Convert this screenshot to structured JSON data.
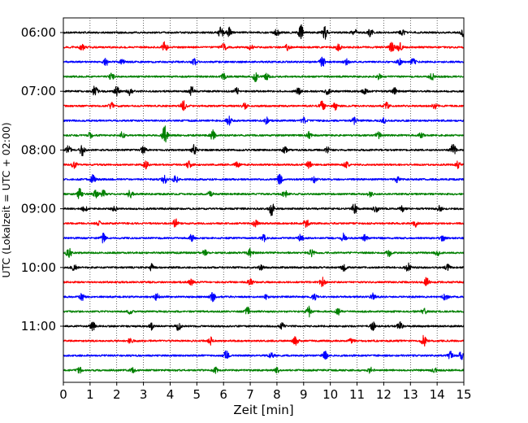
{
  "chart_data": {
    "type": "line",
    "title": "",
    "xlabel": "Zeit  [min]",
    "ylabel": "UTC (Lokalzeit = UTC + 02:00)",
    "xlim": [
      0,
      15
    ],
    "x_ticks": [
      "0",
      "1",
      "2",
      "3",
      "4",
      "5",
      "6",
      "7",
      "8",
      "9",
      "10",
      "11",
      "12",
      "13",
      "14",
      "15"
    ],
    "y_tick_labels": [
      "06:00",
      "07:00",
      "08:00",
      "09:00",
      "10:00",
      "11:00"
    ],
    "trace_interval_minutes": 15,
    "start_time": "06:00",
    "trace_count": 24,
    "color_cycle": [
      "#000000",
      "#ff0000",
      "#0000ff",
      "#008000"
    ],
    "grid": "vertical dotted at each minute",
    "series": [
      {
        "start": "06:00",
        "events": [
          [
            5.9,
            1.0
          ],
          [
            6.2,
            0.9
          ],
          [
            8.0,
            0.6
          ],
          [
            8.9,
            1.4
          ],
          [
            9.8,
            1.2
          ],
          [
            10.9,
            0.6
          ],
          [
            11.5,
            0.7
          ],
          [
            12.7,
            0.6
          ],
          [
            15.0,
            1.1
          ]
        ]
      },
      {
        "start": "06:15",
        "events": [
          [
            0.7,
            0.6
          ],
          [
            3.8,
            1.0
          ],
          [
            6.0,
            0.8
          ],
          [
            7.0,
            0.5
          ],
          [
            8.4,
            0.5
          ],
          [
            10.3,
            0.6
          ],
          [
            12.3,
            0.9
          ],
          [
            12.6,
            0.9
          ]
        ]
      },
      {
        "start": "06:30",
        "events": [
          [
            1.6,
            0.6
          ],
          [
            2.2,
            0.4
          ],
          [
            4.9,
            0.6
          ],
          [
            9.7,
            0.9
          ],
          [
            10.6,
            0.5
          ],
          [
            12.6,
            0.5
          ],
          [
            13.1,
            0.6
          ]
        ]
      },
      {
        "start": "06:45",
        "events": [
          [
            1.8,
            0.6
          ],
          [
            6.0,
            0.5
          ],
          [
            7.2,
            1.0
          ],
          [
            7.6,
            0.6
          ],
          [
            11.8,
            0.5
          ],
          [
            13.8,
            0.6
          ]
        ]
      },
      {
        "start": "07:00",
        "events": [
          [
            1.2,
            1.2
          ],
          [
            2.0,
            0.9
          ],
          [
            2.5,
            0.8
          ],
          [
            4.8,
            0.9
          ],
          [
            6.5,
            0.7
          ],
          [
            8.8,
            0.6
          ],
          [
            9.9,
            0.6
          ],
          [
            11.3,
            0.5
          ],
          [
            12.4,
            0.6
          ]
        ]
      },
      {
        "start": "07:15",
        "events": [
          [
            1.8,
            0.6
          ],
          [
            4.5,
            1.0
          ],
          [
            6.8,
            0.5
          ],
          [
            9.7,
            1.0
          ],
          [
            10.2,
            0.7
          ],
          [
            12.1,
            0.6
          ],
          [
            13.9,
            0.5
          ]
        ]
      },
      {
        "start": "07:30",
        "events": [
          [
            6.2,
            0.9
          ],
          [
            7.6,
            0.6
          ],
          [
            9.0,
            0.5
          ],
          [
            10.9,
            0.6
          ],
          [
            12.0,
            0.5
          ]
        ]
      },
      {
        "start": "07:45",
        "events": [
          [
            1.0,
            0.5
          ],
          [
            2.2,
            0.8
          ],
          [
            3.8,
            1.8
          ],
          [
            5.6,
            0.9
          ],
          [
            9.2,
            0.7
          ],
          [
            11.8,
            0.6
          ],
          [
            13.4,
            0.5
          ]
        ]
      },
      {
        "start": "08:00",
        "events": [
          [
            0.2,
            0.9
          ],
          [
            0.7,
            1.3
          ],
          [
            3.0,
            0.7
          ],
          [
            4.9,
            1.0
          ],
          [
            8.3,
            0.5
          ],
          [
            9.9,
            0.6
          ],
          [
            14.6,
            1.1
          ]
        ]
      },
      {
        "start": "08:15",
        "events": [
          [
            0.4,
            0.7
          ],
          [
            3.1,
            0.9
          ],
          [
            4.7,
            0.6
          ],
          [
            6.5,
            0.5
          ],
          [
            9.2,
            0.6
          ],
          [
            10.6,
            0.5
          ],
          [
            14.8,
            0.7
          ]
        ]
      },
      {
        "start": "08:30",
        "events": [
          [
            1.1,
            0.8
          ],
          [
            3.8,
            0.8
          ],
          [
            4.2,
            0.6
          ],
          [
            8.1,
            0.9
          ],
          [
            9.4,
            0.6
          ],
          [
            12.5,
            0.5
          ]
        ]
      },
      {
        "start": "08:45",
        "events": [
          [
            0.6,
            1.0
          ],
          [
            1.2,
            0.7
          ],
          [
            1.5,
            0.7
          ],
          [
            2.5,
            0.9
          ],
          [
            5.5,
            0.5
          ],
          [
            8.3,
            0.8
          ],
          [
            11.5,
            0.7
          ]
        ]
      },
      {
        "start": "09:00",
        "events": [
          [
            0.8,
            0.6
          ],
          [
            1.9,
            0.5
          ],
          [
            7.8,
            1.3
          ],
          [
            10.9,
            0.9
          ],
          [
            11.7,
            0.6
          ],
          [
            12.7,
            0.5
          ],
          [
            14.1,
            0.5
          ]
        ]
      },
      {
        "start": "09:15",
        "events": [
          [
            1.3,
            0.5
          ],
          [
            4.2,
            0.8
          ],
          [
            7.2,
            0.6
          ],
          [
            9.1,
            0.8
          ],
          [
            13.2,
            0.6
          ]
        ]
      },
      {
        "start": "09:30",
        "events": [
          [
            1.5,
            1.1
          ],
          [
            4.8,
            0.6
          ],
          [
            7.5,
            0.6
          ],
          [
            8.9,
            0.7
          ],
          [
            10.5,
            0.8
          ],
          [
            11.3,
            0.6
          ],
          [
            14.2,
            0.5
          ]
        ]
      },
      {
        "start": "09:45",
        "events": [
          [
            0.2,
            1.2
          ],
          [
            5.3,
            0.5
          ],
          [
            7.0,
            0.7
          ],
          [
            9.3,
            0.6
          ],
          [
            12.2,
            0.7
          ],
          [
            14.0,
            0.5
          ]
        ]
      },
      {
        "start": "10:00",
        "events": [
          [
            0.4,
            0.5
          ],
          [
            3.3,
            0.6
          ],
          [
            7.4,
            0.5
          ],
          [
            10.5,
            0.6
          ],
          [
            12.9,
            0.8
          ],
          [
            14.4,
            0.5
          ]
        ]
      },
      {
        "start": "10:15",
        "events": [
          [
            4.8,
            0.6
          ],
          [
            7.0,
            0.6
          ],
          [
            9.7,
            0.9
          ],
          [
            13.6,
            0.8
          ]
        ]
      },
      {
        "start": "10:30",
        "events": [
          [
            0.7,
            0.6
          ],
          [
            3.5,
            0.6
          ],
          [
            5.6,
            0.8
          ],
          [
            7.6,
            0.5
          ],
          [
            9.4,
            0.6
          ],
          [
            11.6,
            0.6
          ],
          [
            14.3,
            0.7
          ]
        ]
      },
      {
        "start": "10:45",
        "events": [
          [
            2.5,
            0.5
          ],
          [
            6.9,
            0.8
          ],
          [
            9.2,
            0.9
          ],
          [
            10.3,
            0.6
          ],
          [
            13.5,
            0.6
          ]
        ]
      },
      {
        "start": "11:00",
        "events": [
          [
            1.1,
            0.8
          ],
          [
            3.3,
            0.6
          ],
          [
            4.3,
            0.8
          ],
          [
            8.2,
            0.6
          ],
          [
            11.6,
            0.7
          ],
          [
            12.6,
            0.9
          ]
        ]
      },
      {
        "start": "11:15",
        "events": [
          [
            2.5,
            0.4
          ],
          [
            5.5,
            0.7
          ],
          [
            8.7,
            0.8
          ],
          [
            10.8,
            0.5
          ],
          [
            13.5,
            1.0
          ]
        ]
      },
      {
        "start": "11:30",
        "events": [
          [
            6.1,
            0.9
          ],
          [
            7.8,
            0.5
          ],
          [
            9.8,
            0.8
          ],
          [
            14.5,
            0.7
          ],
          [
            14.9,
            0.7
          ]
        ]
      },
      {
        "start": "11:45",
        "events": [
          [
            0.6,
            0.6
          ],
          [
            2.6,
            0.4
          ],
          [
            5.7,
            0.5
          ],
          [
            8.0,
            0.5
          ],
          [
            11.5,
            0.5
          ],
          [
            13.9,
            0.4
          ]
        ]
      }
    ]
  }
}
